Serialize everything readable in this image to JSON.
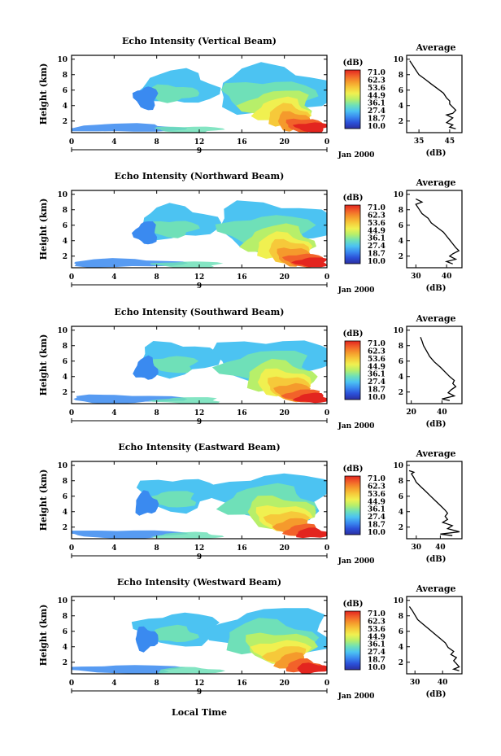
{
  "x_axis_label": "Local Time",
  "date_label": "Jan 2000",
  "panel_x_ticks": [
    "0",
    "4",
    "8",
    "12",
    "16",
    "20",
    "0"
  ],
  "panel_y_ticks": [
    "10",
    "8",
    "6",
    "4",
    "2"
  ],
  "day_marker_label": "9",
  "colorbar": {
    "unit": "(dB)",
    "ticks": [
      "71.0",
      "62.3",
      "53.6",
      "44.9",
      "36.1",
      "27.4",
      "18.7",
      "10.0"
    ],
    "colors": [
      "#2b2fa0",
      "#2b50d8",
      "#3a8af0",
      "#4cc3f2",
      "#6fe0b8",
      "#b7ef6a",
      "#f0f050",
      "#f6c93a",
      "#f59a2c",
      "#f2622a",
      "#e3251f"
    ]
  },
  "average_title": "Average",
  "average_unit": "(dB)",
  "colors": {
    "profile_line": "#000000",
    "axis": "#000000"
  },
  "chart_data": [
    {
      "type": "heatmap",
      "title": "Echo Intensity (Vertical Beam)",
      "ylabel": "Height (km)",
      "xlabel": "",
      "x_range_hours": [
        0,
        24
      ],
      "ylim_km": [
        0.5,
        10.5
      ],
      "color_range_db": [
        10.0,
        71.0
      ],
      "profile": {
        "title": "Average",
        "xlabel": "(dB)",
        "x_ticks": [
          "35",
          "45"
        ],
        "xlim": [
          31,
          49
        ],
        "ylim": [
          0.5,
          10.5
        ],
        "points": [
          [
            47,
            1.0
          ],
          [
            45,
            1.2
          ],
          [
            46,
            1.5
          ],
          [
            44,
            1.8
          ],
          [
            45,
            2.1
          ],
          [
            46,
            2.4
          ],
          [
            44,
            2.8
          ],
          [
            46,
            3.0
          ],
          [
            47,
            3.4
          ],
          [
            46,
            3.8
          ],
          [
            45,
            4.2
          ],
          [
            45,
            4.6
          ],
          [
            44,
            5.0
          ],
          [
            43,
            5.6
          ],
          [
            41,
            6.2
          ],
          [
            39,
            6.8
          ],
          [
            37,
            7.4
          ],
          [
            35,
            8.0
          ],
          [
            34,
            8.6
          ],
          [
            33,
            9.2
          ],
          [
            32,
            9.8
          ]
        ]
      }
    },
    {
      "type": "heatmap",
      "title": "Echo Intensity (Northward Beam)",
      "ylabel": "Height (km)",
      "xlabel": "",
      "x_range_hours": [
        0,
        24
      ],
      "ylim_km": [
        0.5,
        10.5
      ],
      "color_range_db": [
        10.0,
        71.0
      ],
      "profile": {
        "title": "Average",
        "xlabel": "(dB)",
        "x_ticks": [
          "30",
          "40"
        ],
        "xlim": [
          27,
          45
        ],
        "ylim": [
          0.5,
          10.5
        ],
        "points": [
          [
            42,
            1.0
          ],
          [
            40,
            1.3
          ],
          [
            43,
            1.6
          ],
          [
            41,
            2.0
          ],
          [
            42,
            2.3
          ],
          [
            44,
            2.7
          ],
          [
            43,
            3.1
          ],
          [
            42,
            3.6
          ],
          [
            41,
            4.1
          ],
          [
            40,
            4.6
          ],
          [
            39,
            5.1
          ],
          [
            37,
            5.7
          ],
          [
            35,
            6.3
          ],
          [
            34,
            6.9
          ],
          [
            32,
            7.5
          ],
          [
            31,
            8.1
          ],
          [
            30,
            8.7
          ],
          [
            32,
            9.0
          ],
          [
            30,
            9.4
          ]
        ]
      }
    },
    {
      "type": "heatmap",
      "title": "Echo Intensity (Southward Beam)",
      "ylabel": "Height (km)",
      "xlabel": "",
      "x_range_hours": [
        0,
        24
      ],
      "ylim_km": [
        0.5,
        10.5
      ],
      "color_range_db": [
        10.0,
        71.0
      ],
      "profile": {
        "title": "Average",
        "xlabel": "(dB)",
        "x_ticks": [
          "20",
          "40"
        ],
        "xlim": [
          17,
          53
        ],
        "ylim": [
          0.5,
          10.5
        ],
        "points": [
          [
            45,
            0.9
          ],
          [
            40,
            1.1
          ],
          [
            48,
            1.5
          ],
          [
            44,
            1.9
          ],
          [
            46,
            2.3
          ],
          [
            49,
            2.7
          ],
          [
            47,
            3.1
          ],
          [
            48,
            3.5
          ],
          [
            45,
            4.0
          ],
          [
            42,
            4.6
          ],
          [
            39,
            5.2
          ],
          [
            35,
            5.9
          ],
          [
            32,
            6.6
          ],
          [
            30,
            7.3
          ],
          [
            28,
            8.0
          ],
          [
            27,
            8.6
          ],
          [
            26,
            9.1
          ]
        ]
      }
    },
    {
      "type": "heatmap",
      "title": "Echo Intensity (Eastward Beam)",
      "ylabel": "Height (km)",
      "xlabel": "",
      "x_range_hours": [
        0,
        24
      ],
      "ylim_km": [
        0.5,
        10.5
      ],
      "color_range_db": [
        10.0,
        71.0
      ],
      "profile": {
        "title": "Average",
        "xlabel": "(dB)",
        "x_ticks": [
          "30",
          "40"
        ],
        "xlim": [
          26,
          49
        ],
        "ylim": [
          0.5,
          10.5
        ],
        "points": [
          [
            45,
            0.9
          ],
          [
            40,
            1.1
          ],
          [
            48,
            1.4
          ],
          [
            43,
            1.8
          ],
          [
            45,
            2.2
          ],
          [
            41,
            2.6
          ],
          [
            43,
            3.0
          ],
          [
            42,
            3.4
          ],
          [
            43,
            3.8
          ],
          [
            42,
            4.2
          ],
          [
            40,
            4.8
          ],
          [
            38,
            5.4
          ],
          [
            36,
            6.0
          ],
          [
            34,
            6.6
          ],
          [
            32,
            7.2
          ],
          [
            30,
            7.8
          ],
          [
            29,
            8.4
          ],
          [
            28,
            8.9
          ],
          [
            29,
            9.1
          ],
          [
            27,
            9.3
          ]
        ]
      }
    },
    {
      "type": "heatmap",
      "title": "Echo Intensity (Westward Beam)",
      "ylabel": "Height (km)",
      "xlabel": "Local Time",
      "x_range_hours": [
        0,
        24
      ],
      "ylim_km": [
        0.5,
        10.5
      ],
      "color_range_db": [
        10.0,
        71.0
      ],
      "profile": {
        "title": "Average",
        "xlabel": "(dB)",
        "x_ticks": [
          "30",
          "40"
        ],
        "xlim": [
          27,
          47
        ],
        "ylim": [
          0.5,
          10.5
        ],
        "points": [
          [
            46,
            0.9
          ],
          [
            44,
            1.1
          ],
          [
            46,
            1.4
          ],
          [
            45,
            1.8
          ],
          [
            44,
            2.2
          ],
          [
            45,
            2.6
          ],
          [
            43,
            3.0
          ],
          [
            44,
            3.4
          ],
          [
            42,
            3.9
          ],
          [
            41,
            4.5
          ],
          [
            39,
            5.1
          ],
          [
            37,
            5.7
          ],
          [
            35,
            6.3
          ],
          [
            33,
            6.9
          ],
          [
            31,
            7.5
          ],
          [
            30,
            8.1
          ],
          [
            29,
            8.7
          ],
          [
            28,
            9.2
          ]
        ]
      }
    }
  ]
}
